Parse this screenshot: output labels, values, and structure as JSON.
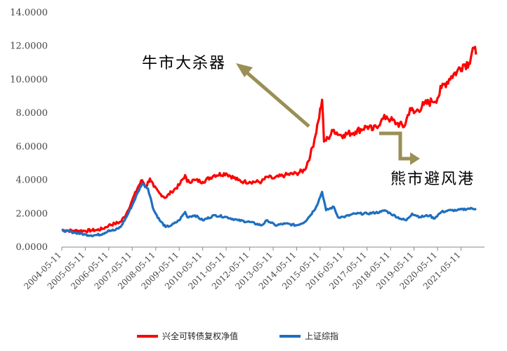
{
  "chart_data": {
    "type": "line",
    "title": "",
    "xlabel": "",
    "ylabel": "",
    "ylim": [
      0,
      14
    ],
    "grid": false,
    "legend_position": "bottom",
    "y_ticks": [
      "0.0000",
      "2.0000",
      "4.0000",
      "6.0000",
      "8.0000",
      "10.0000",
      "12.0000",
      "14.0000"
    ],
    "x_ticks": [
      "2004-05-11",
      "2005-05-11",
      "2006-05-11",
      "2007-05-11",
      "2008-05-11",
      "2009-05-11",
      "2010-05-11",
      "2011-05-11",
      "2012-05-11",
      "2013-05-11",
      "2014-05-11",
      "2015-05-11",
      "2016-05-11",
      "2017-05-11",
      "2018-05-11",
      "2019-05-11",
      "2020-05-11",
      "2021-05-11"
    ],
    "x_range": [
      "2004-05-11",
      "2021-12-31"
    ],
    "series": [
      {
        "name": "兴全可转债复权净值",
        "color": "#ff0000",
        "points": [
          [
            "2004-05-11",
            1.0
          ],
          [
            "2004-11-11",
            0.98
          ],
          [
            "2005-05-11",
            0.97
          ],
          [
            "2005-08-11",
            1.0
          ],
          [
            "2005-11-11",
            1.02
          ],
          [
            "2006-02-11",
            1.1
          ],
          [
            "2006-05-11",
            1.3
          ],
          [
            "2006-08-11",
            1.4
          ],
          [
            "2006-11-11",
            1.5
          ],
          [
            "2007-02-11",
            2.0
          ],
          [
            "2007-05-11",
            2.8
          ],
          [
            "2007-08-11",
            3.6
          ],
          [
            "2007-10-11",
            4.0
          ],
          [
            "2007-12-11",
            3.6
          ],
          [
            "2008-02-11",
            4.1
          ],
          [
            "2008-04-11",
            3.6
          ],
          [
            "2008-07-11",
            3.2
          ],
          [
            "2008-10-11",
            2.95
          ],
          [
            "2009-01-11",
            3.3
          ],
          [
            "2009-05-11",
            3.7
          ],
          [
            "2009-08-11",
            4.3
          ],
          [
            "2009-09-11",
            3.9
          ],
          [
            "2010-01-11",
            4.0
          ],
          [
            "2010-05-11",
            3.9
          ],
          [
            "2010-11-11",
            4.3
          ],
          [
            "2011-05-11",
            4.4
          ],
          [
            "2011-11-11",
            4.0
          ],
          [
            "2012-02-11",
            3.9
          ],
          [
            "2012-05-11",
            3.9
          ],
          [
            "2012-11-11",
            3.9
          ],
          [
            "2013-02-11",
            4.2
          ],
          [
            "2013-05-11",
            4.1
          ],
          [
            "2013-11-11",
            4.3
          ],
          [
            "2014-05-11",
            4.4
          ],
          [
            "2014-09-11",
            4.6
          ],
          [
            "2014-12-11",
            5.5
          ],
          [
            "2015-02-11",
            6.4
          ],
          [
            "2015-04-11",
            7.5
          ],
          [
            "2015-06-11",
            8.8
          ],
          [
            "2015-07-11",
            6.3
          ],
          [
            "2015-09-11",
            6.5
          ],
          [
            "2015-12-11",
            7.0
          ],
          [
            "2016-03-11",
            6.7
          ],
          [
            "2016-05-11",
            6.7
          ],
          [
            "2016-11-11",
            6.9
          ],
          [
            "2017-05-11",
            7.2
          ],
          [
            "2017-08-11",
            7.0
          ],
          [
            "2017-12-11",
            7.5
          ],
          [
            "2018-03-11",
            7.8
          ],
          [
            "2018-05-11",
            7.6
          ],
          [
            "2018-08-11",
            7.4
          ],
          [
            "2018-12-11",
            7.2
          ],
          [
            "2019-03-11",
            8.3
          ],
          [
            "2019-05-11",
            8.0
          ],
          [
            "2019-10-11",
            8.5
          ],
          [
            "2020-02-11",
            8.7
          ],
          [
            "2020-05-11",
            8.9
          ],
          [
            "2020-07-11",
            9.5
          ],
          [
            "2020-12-11",
            10.2
          ],
          [
            "2021-03-11",
            10.5
          ],
          [
            "2021-06-11",
            10.9
          ],
          [
            "2021-09-11",
            11.0
          ],
          [
            "2021-11-11",
            11.9
          ],
          [
            "2021-12-31",
            11.5
          ]
        ]
      },
      {
        "name": "上证综指",
        "color": "#1f6fbf",
        "points": [
          [
            "2004-05-11",
            1.0
          ],
          [
            "2004-11-11",
            0.88
          ],
          [
            "2005-05-11",
            0.75
          ],
          [
            "2005-08-11",
            0.7
          ],
          [
            "2005-11-11",
            0.72
          ],
          [
            "2006-02-11",
            0.8
          ],
          [
            "2006-05-11",
            1.0
          ],
          [
            "2006-08-11",
            1.0
          ],
          [
            "2006-11-11",
            1.2
          ],
          [
            "2007-02-11",
            1.8
          ],
          [
            "2007-05-11",
            2.5
          ],
          [
            "2007-08-11",
            3.3
          ],
          [
            "2007-10-11",
            3.8
          ],
          [
            "2008-01-11",
            3.5
          ],
          [
            "2008-04-11",
            2.2
          ],
          [
            "2008-07-11",
            1.6
          ],
          [
            "2008-10-11",
            1.2
          ],
          [
            "2009-01-11",
            1.3
          ],
          [
            "2009-05-11",
            1.6
          ],
          [
            "2009-08-11",
            2.1
          ],
          [
            "2009-09-11",
            1.8
          ],
          [
            "2010-01-11",
            1.9
          ],
          [
            "2010-05-11",
            1.6
          ],
          [
            "2010-11-11",
            1.9
          ],
          [
            "2011-05-11",
            1.8
          ],
          [
            "2011-11-11",
            1.6
          ],
          [
            "2012-05-11",
            1.5
          ],
          [
            "2012-11-11",
            1.3
          ],
          [
            "2013-02-11",
            1.6
          ],
          [
            "2013-06-11",
            1.3
          ],
          [
            "2013-11-11",
            1.4
          ],
          [
            "2014-05-11",
            1.3
          ],
          [
            "2014-09-11",
            1.5
          ],
          [
            "2014-12-11",
            1.9
          ],
          [
            "2015-03-11",
            2.4
          ],
          [
            "2015-06-11",
            3.3
          ],
          [
            "2015-08-11",
            2.2
          ],
          [
            "2015-12-11",
            2.4
          ],
          [
            "2016-02-11",
            1.8
          ],
          [
            "2016-05-11",
            1.8
          ],
          [
            "2016-11-11",
            2.0
          ],
          [
            "2017-05-11",
            2.0
          ],
          [
            "2017-12-11",
            2.1
          ],
          [
            "2018-02-11",
            2.2
          ],
          [
            "2018-05-11",
            2.0
          ],
          [
            "2018-10-11",
            1.7
          ],
          [
            "2019-01-11",
            1.6
          ],
          [
            "2019-04-11",
            2.0
          ],
          [
            "2019-08-11",
            1.8
          ],
          [
            "2020-01-11",
            1.9
          ],
          [
            "2020-03-11",
            1.7
          ],
          [
            "2020-07-11",
            2.1
          ],
          [
            "2020-12-11",
            2.2
          ],
          [
            "2021-03-11",
            2.2
          ],
          [
            "2021-09-11",
            2.3
          ],
          [
            "2021-12-31",
            2.3
          ]
        ]
      }
    ],
    "annotations": [
      {
        "text": "牛市大杀器"
      },
      {
        "text": "熊市避风港"
      }
    ]
  }
}
